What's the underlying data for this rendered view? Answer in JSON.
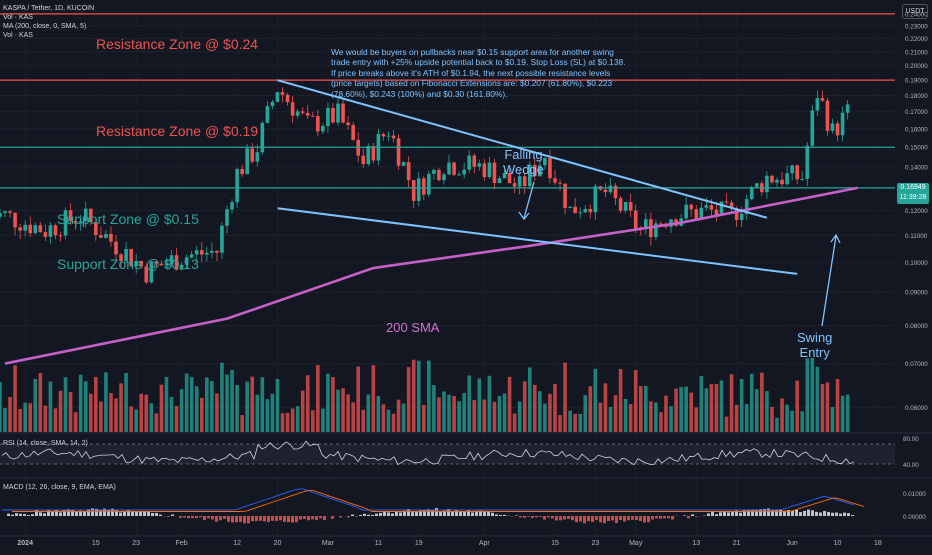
{
  "header": {
    "title": "KASPA / Tether, 1D, KUCOIN",
    "lines": [
      "Vol · KAS",
      "MA (200, close, 0, SMA, 5)",
      "Vol · KAS"
    ]
  },
  "currency_button": "USDT",
  "last_price": {
    "value": "0.16949",
    "countdown": "11:39:28"
  },
  "note": "We would be buyers on pullbacks near $0.15 support area for another swing trade entry with +25% upside potential back to $0.19. Stop Loss (SL) at $0.138. If price breaks above it's ATH of $0.1.94, the next possible resistance levels (price targets) based on Fibonacci Extensions are: $0.207 (61.80%), $0.223 (78.60%), $0.243 (100%) and $0.30 (161.80%).",
  "zones": [
    {
      "label": "Resistance Zone @ $0.24",
      "price": 0.24,
      "kind": "resistance"
    },
    {
      "label": "Resistance Zone @ $0.19",
      "price": 0.19,
      "kind": "resistance"
    },
    {
      "label": "Support Zone @ $0.15",
      "price": 0.15,
      "kind": "support"
    },
    {
      "label": "Support Zone @ $0.13",
      "price": 0.13,
      "kind": "support"
    }
  ],
  "annotations": {
    "wedge": "Falling\nWedge",
    "sma": "200 SMA",
    "swing": "Swing\nEntry"
  },
  "rsi_label": "RSI (14, close, SMA, 14, 2)",
  "macd_label": "MACD (12, 26, close, 9, EMA, EMA)",
  "colors": {
    "up": "#26a69a",
    "down": "#ef5350",
    "support": "#26a69a",
    "resistance": "#ef5350",
    "sma": "#c560c8",
    "wedge": "#7ec3ff",
    "bg": "#131722"
  },
  "chart_data": {
    "type": "candlestick",
    "title": "KASPA / Tether, 1D, KUCOIN",
    "ylabel": "USDT",
    "ylim": [
      0.06,
      0.24
    ],
    "log_scale": true,
    "y_ticks": [
      "0.24000",
      "0.23000",
      "0.22000",
      "0.21000",
      "0.20000",
      "0.19000",
      "0.18000",
      "0.17000",
      "0.16000",
      "0.15000",
      "0.14000",
      "0.13000",
      "0.12000",
      "0.11000",
      "0.10000",
      "0.09000",
      "0.08000",
      "0.07000",
      "0.06000"
    ],
    "x_ticks": [
      "2024",
      "15",
      "23",
      "Feb",
      "12",
      "20",
      "Mar",
      "11",
      "19",
      "Apr",
      "15",
      "23",
      "May",
      "13",
      "21",
      "Jun",
      "10",
      "18"
    ],
    "price_path": [
      {
        "date": "2023-12-28",
        "price": 0.118
      },
      {
        "date": "2024-01-05",
        "price": 0.112
      },
      {
        "date": "2024-01-12",
        "price": 0.118
      },
      {
        "date": "2024-01-18",
        "price": 0.108
      },
      {
        "date": "2024-01-25",
        "price": 0.097
      },
      {
        "date": "2024-02-01",
        "price": 0.102
      },
      {
        "date": "2024-02-08",
        "price": 0.104
      },
      {
        "date": "2024-02-12",
        "price": 0.137
      },
      {
        "date": "2024-02-16",
        "price": 0.15
      },
      {
        "date": "2024-02-20",
        "price": 0.185
      },
      {
        "date": "2024-02-26",
        "price": 0.162
      },
      {
        "date": "2024-03-03",
        "price": 0.168
      },
      {
        "date": "2024-03-08",
        "price": 0.142
      },
      {
        "date": "2024-03-13",
        "price": 0.16
      },
      {
        "date": "2024-03-18",
        "price": 0.128
      },
      {
        "date": "2024-03-24",
        "price": 0.142
      },
      {
        "date": "2024-04-01",
        "price": 0.14
      },
      {
        "date": "2024-04-08",
        "price": 0.13
      },
      {
        "date": "2024-04-13",
        "price": 0.146
      },
      {
        "date": "2024-04-18",
        "price": 0.12
      },
      {
        "date": "2024-04-25",
        "price": 0.128
      },
      {
        "date": "2024-05-02",
        "price": 0.112
      },
      {
        "date": "2024-05-08",
        "price": 0.118
      },
      {
        "date": "2024-05-15",
        "price": 0.12
      },
      {
        "date": "2024-05-20",
        "price": 0.118
      },
      {
        "date": "2024-05-27",
        "price": 0.135
      },
      {
        "date": "2024-06-03",
        "price": 0.135
      },
      {
        "date": "2024-06-06",
        "price": 0.182
      },
      {
        "date": "2024-06-09",
        "price": 0.158
      },
      {
        "date": "2024-06-12",
        "price": 0.169
      }
    ],
    "sma200": [
      {
        "date": "2023-12-28",
        "value": 0.07
      },
      {
        "date": "2024-02-10",
        "value": 0.082
      },
      {
        "date": "2024-03-10",
        "value": 0.098
      },
      {
        "date": "2024-04-10",
        "value": 0.106
      },
      {
        "date": "2024-05-10",
        "value": 0.115
      },
      {
        "date": "2024-06-14",
        "value": 0.13
      }
    ],
    "wedge": {
      "upper": [
        {
          "date": "2024-02-20",
          "price": 0.19
        },
        {
          "date": "2024-05-27",
          "price": 0.117
        }
      ],
      "lower": [
        {
          "date": "2024-02-20",
          "price": 0.121
        },
        {
          "date": "2024-06-02",
          "price": 0.096
        }
      ]
    },
    "panes": {
      "rsi": {
        "ylim_labels": [
          "80.00",
          "40.00"
        ]
      },
      "macd": {
        "y_labels": [
          "0.01000",
          "0.00000"
        ]
      }
    },
    "grid": true
  }
}
